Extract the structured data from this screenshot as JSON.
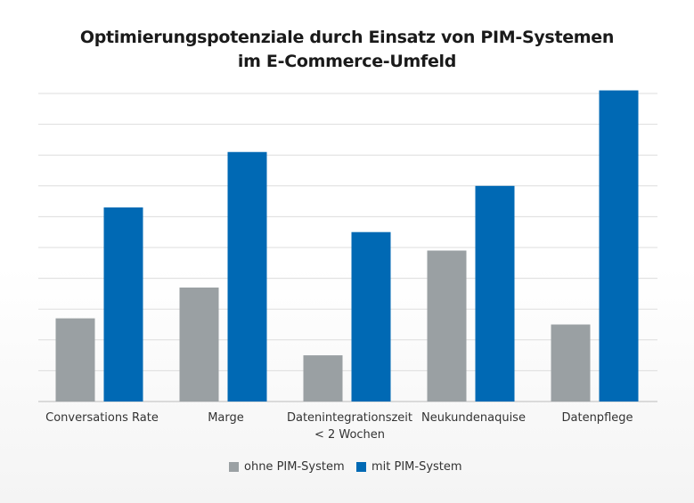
{
  "chart_data": {
    "type": "bar",
    "title": [
      "Optimierungspotenziale durch Einsatz von PIM-Systemen",
      "im E-Commerce-Umfeld"
    ],
    "categories": [
      [
        "Conversations Rate"
      ],
      [
        "Marge"
      ],
      [
        "Datenintegrationszeit",
        "< 2 Wochen"
      ],
      [
        "Neukundenaquise"
      ],
      [
        "Datenpflege"
      ]
    ],
    "series": [
      {
        "name": "ohne PIM-System",
        "color": "#9aa0a3",
        "values": [
          2.7,
          3.7,
          1.5,
          4.9,
          2.5
        ]
      },
      {
        "name": "mit PIM-System",
        "color": "#0069b4",
        "values": [
          6.3,
          8.1,
          5.5,
          7.0,
          10.1
        ]
      }
    ],
    "ylim": [
      0,
      10
    ],
    "grid": true,
    "y_tick_labels": false,
    "legend": "bottom"
  }
}
